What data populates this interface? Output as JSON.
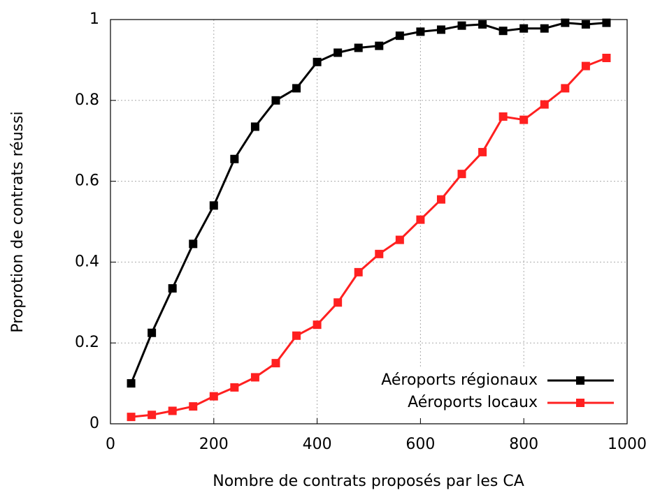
{
  "chart_data": {
    "type": "line",
    "xlabel": "Nombre de contrats proposés par les CA",
    "ylabel": "Proprotion de contrats réussi",
    "x": [
      40,
      80,
      120,
      160,
      200,
      240,
      280,
      320,
      360,
      400,
      440,
      480,
      520,
      560,
      600,
      640,
      680,
      720,
      760,
      800,
      840,
      880,
      920,
      960
    ],
    "series": [
      {
        "name": "Aéroports régionaux",
        "color": "#000000",
        "values": [
          0.1,
          0.225,
          0.335,
          0.445,
          0.54,
          0.655,
          0.735,
          0.8,
          0.83,
          0.895,
          0.918,
          0.93,
          0.935,
          0.96,
          0.97,
          0.975,
          0.985,
          0.988,
          0.972,
          0.978,
          0.978,
          0.992,
          0.988,
          0.992
        ]
      },
      {
        "name": "Aéroports locaux",
        "color": "#ff2020",
        "values": [
          0.017,
          0.022,
          0.032,
          0.043,
          0.068,
          0.09,
          0.115,
          0.15,
          0.218,
          0.245,
          0.3,
          0.375,
          0.42,
          0.455,
          0.505,
          0.555,
          0.618,
          0.672,
          0.76,
          0.752,
          0.79,
          0.83,
          0.885,
          0.905
        ]
      }
    ],
    "xlim": [
      0,
      1000
    ],
    "xticks": [
      0,
      200,
      400,
      600,
      800,
      1000
    ],
    "ylim": [
      0,
      1
    ],
    "yticks": [
      0,
      0.2,
      0.4,
      0.6,
      0.8,
      1
    ],
    "grid": true,
    "legend": "lower right"
  }
}
